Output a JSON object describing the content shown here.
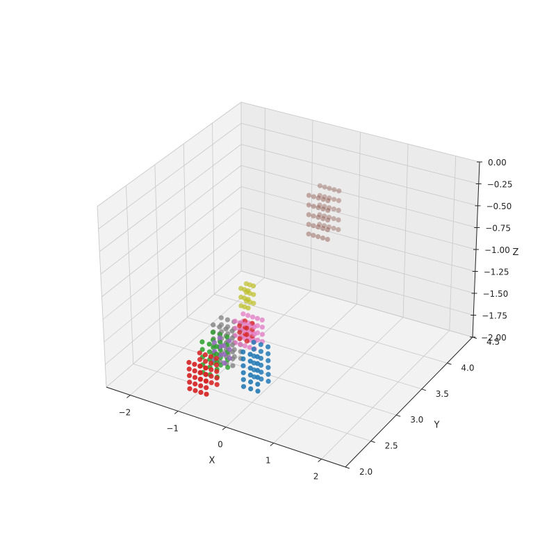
{
  "chart_data": {
    "type": "scatter3d",
    "title": "",
    "axes": {
      "x": {
        "label": "X",
        "range": [
          -2.5,
          2.5
        ],
        "ticks": [
          -2,
          -1,
          0,
          1,
          2
        ],
        "tick_labels": [
          "−2",
          "−1",
          "0",
          "1",
          "2"
        ]
      },
      "y": {
        "label": "Y",
        "range": [
          2.0,
          4.5
        ],
        "ticks": [
          2.0,
          2.5,
          3.0,
          3.5,
          4.0,
          4.5
        ],
        "tick_labels": [
          "2.0",
          "2.5",
          "3.0",
          "3.5",
          "4.0",
          "4.5"
        ]
      },
      "z": {
        "label": "Z",
        "range": [
          -2.0,
          0.0
        ],
        "ticks": [
          -2.0,
          -1.75,
          -1.5,
          -1.25,
          -1.0,
          -0.75,
          -0.5,
          -0.25,
          0.0
        ],
        "tick_labels": [
          "−2.00",
          "−1.75",
          "−1.50",
          "−1.25",
          "−1.00",
          "−0.75",
          "−0.50",
          "−0.25",
          "0.00"
        ]
      }
    },
    "grid": true,
    "legend": "none",
    "clusters": [
      {
        "color": "#8c564b",
        "x_range": [
          -0.6,
          -0.2
        ],
        "y_range": [
          4.1,
          4.3
        ],
        "z_range": [
          -1.05,
          -0.6
        ],
        "nx": 5,
        "ny": 2,
        "nz": 5
      },
      {
        "color": "#bcbd22",
        "x_range": [
          -1.0,
          -0.85
        ],
        "y_range": [
          3.2,
          3.3
        ],
        "z_range": [
          -1.45,
          -1.25
        ],
        "nx": 3,
        "ny": 2,
        "nz": 3
      },
      {
        "color": "#7f7f7f",
        "x_range": [
          -1.25,
          -0.85
        ],
        "y_range": [
          2.9,
          3.05
        ],
        "z_range": [
          -1.95,
          -1.55
        ],
        "nx": 4,
        "ny": 2,
        "nz": 6
      },
      {
        "color": "#e377c2",
        "x_range": [
          -0.9,
          -0.5
        ],
        "y_range": [
          3.0,
          3.15
        ],
        "z_range": [
          -1.75,
          -1.5
        ],
        "nx": 5,
        "ny": 2,
        "nz": 4
      },
      {
        "color": "#2ca02c",
        "x_range": [
          -1.2,
          -0.9
        ],
        "y_range": [
          2.65,
          2.85
        ],
        "z_range": [
          -1.95,
          -1.6
        ],
        "nx": 3,
        "ny": 2,
        "nz": 5
      },
      {
        "color": "#1f77b4",
        "x_range": [
          -0.4,
          -0.1
        ],
        "y_range": [
          2.7,
          2.9
        ],
        "z_range": [
          -2.0,
          -1.6
        ],
        "nx": 3,
        "ny": 2,
        "nz": 6
      },
      {
        "color": "#9467bd",
        "x_range": [
          -1.0,
          -0.8
        ],
        "y_range": [
          2.7,
          2.8
        ],
        "z_range": [
          -1.8,
          -1.6
        ],
        "nx": 2,
        "ny": 2,
        "nz": 3
      },
      {
        "color": "#d62728",
        "x_range": [
          -1.2,
          -0.85
        ],
        "y_range": [
          2.4,
          2.6
        ],
        "z_range": [
          -2.0,
          -1.7
        ],
        "nx": 4,
        "ny": 2,
        "nz": 5
      },
      {
        "color": "#d62728",
        "x_range": [
          -0.75,
          -0.6
        ],
        "y_range": [
          2.95,
          3.05
        ],
        "z_range": [
          -1.65,
          -1.5
        ],
        "nx": 2,
        "ny": 2,
        "nz": 3
      }
    ]
  }
}
